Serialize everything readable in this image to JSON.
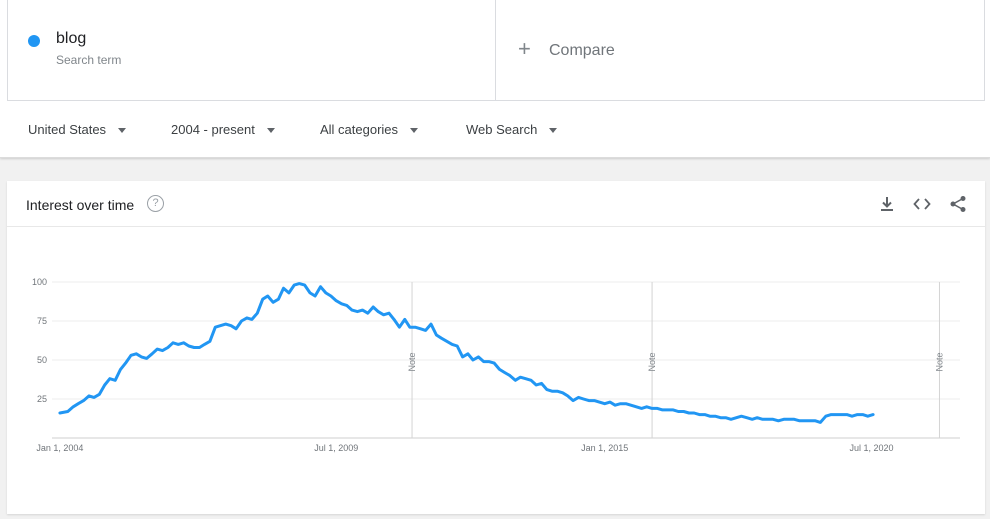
{
  "search_term": {
    "name": "blog",
    "subtitle": "Search term",
    "color": "#2196f3"
  },
  "compare": {
    "label": "Compare"
  },
  "filters": [
    {
      "label": "United States"
    },
    {
      "label": "2004 - present"
    },
    {
      "label": "All categories"
    },
    {
      "label": "Web Search"
    }
  ],
  "card": {
    "title": "Interest over time",
    "help": "?",
    "icons": [
      "download-icon",
      "embed-icon",
      "share-icon"
    ]
  },
  "chart_data": {
    "type": "line",
    "series": [
      {
        "name": "blog",
        "color": "#2196f3",
        "points": [
          [
            2004.0,
            16
          ],
          [
            2004.25,
            17
          ],
          [
            2004.42,
            20
          ],
          [
            2004.58,
            22
          ],
          [
            2004.75,
            24
          ],
          [
            2004.92,
            27
          ],
          [
            2005.08,
            26
          ],
          [
            2005.25,
            28
          ],
          [
            2005.42,
            34
          ],
          [
            2005.58,
            38
          ],
          [
            2005.75,
            37
          ],
          [
            2005.92,
            44
          ],
          [
            2006.08,
            48
          ],
          [
            2006.25,
            53
          ],
          [
            2006.42,
            54
          ],
          [
            2006.58,
            52
          ],
          [
            2006.75,
            51
          ],
          [
            2006.92,
            54
          ],
          [
            2007.08,
            57
          ],
          [
            2007.25,
            56
          ],
          [
            2007.42,
            58
          ],
          [
            2007.58,
            61
          ],
          [
            2007.75,
            60
          ],
          [
            2007.92,
            61
          ],
          [
            2008.08,
            59
          ],
          [
            2008.25,
            58
          ],
          [
            2008.42,
            58
          ],
          [
            2008.58,
            60
          ],
          [
            2008.75,
            62
          ],
          [
            2008.92,
            71
          ],
          [
            2009.08,
            72
          ],
          [
            2009.25,
            73
          ],
          [
            2009.42,
            72
          ],
          [
            2009.58,
            70
          ],
          [
            2009.75,
            75
          ],
          [
            2009.92,
            77
          ],
          [
            2010.08,
            76
          ],
          [
            2010.25,
            80
          ],
          [
            2010.42,
            89
          ],
          [
            2010.58,
            91
          ],
          [
            2010.75,
            87
          ],
          [
            2010.92,
            89
          ],
          [
            2011.08,
            96
          ],
          [
            2011.25,
            93
          ],
          [
            2011.42,
            98
          ],
          [
            2011.58,
            99
          ],
          [
            2011.75,
            98
          ],
          [
            2011.92,
            93
          ],
          [
            2012.08,
            91
          ],
          [
            2012.25,
            97
          ],
          [
            2012.42,
            93
          ],
          [
            2012.58,
            91
          ],
          [
            2012.75,
            88
          ],
          [
            2012.92,
            86
          ],
          [
            2013.08,
            85
          ],
          [
            2013.25,
            82
          ],
          [
            2013.42,
            81
          ],
          [
            2013.58,
            82
          ],
          [
            2013.75,
            80
          ],
          [
            2013.92,
            84
          ],
          [
            2014.08,
            81
          ],
          [
            2014.25,
            79
          ],
          [
            2014.42,
            80
          ],
          [
            2014.58,
            76
          ],
          [
            2014.75,
            71
          ],
          [
            2014.92,
            76
          ],
          [
            2015.08,
            71
          ],
          [
            2015.25,
            71
          ],
          [
            2015.42,
            70
          ],
          [
            2015.58,
            69
          ],
          [
            2015.75,
            73
          ],
          [
            2015.92,
            66
          ],
          [
            2016.08,
            64
          ],
          [
            2016.25,
            62
          ],
          [
            2016.42,
            60
          ],
          [
            2016.58,
            59
          ],
          [
            2016.75,
            52
          ],
          [
            2016.92,
            54
          ],
          [
            2017.08,
            50
          ],
          [
            2017.25,
            52
          ],
          [
            2017.42,
            49
          ],
          [
            2017.58,
            49
          ],
          [
            2017.75,
            48
          ],
          [
            2017.92,
            44
          ],
          [
            2018.08,
            42
          ],
          [
            2018.25,
            40
          ],
          [
            2018.42,
            37
          ],
          [
            2018.58,
            39
          ],
          [
            2018.75,
            38
          ],
          [
            2018.92,
            37
          ],
          [
            2019.08,
            34
          ],
          [
            2019.25,
            35
          ],
          [
            2019.42,
            31
          ],
          [
            2019.58,
            30
          ],
          [
            2019.75,
            30
          ],
          [
            2019.92,
            29
          ],
          [
            2020.08,
            27
          ],
          [
            2020.25,
            24
          ],
          [
            2020.42,
            26
          ],
          [
            2020.58,
            25
          ],
          [
            2020.75,
            24
          ],
          [
            2020.92,
            24
          ],
          [
            2021.08,
            23
          ],
          [
            2021.25,
            22
          ],
          [
            2021.42,
            23
          ],
          [
            2021.58,
            21
          ],
          [
            2021.75,
            22
          ],
          [
            2021.92,
            22
          ],
          [
            2022.08,
            21
          ],
          [
            2022.25,
            20
          ],
          [
            2022.42,
            19
          ],
          [
            2022.58,
            20
          ],
          [
            2022.75,
            19
          ],
          [
            2022.92,
            19
          ],
          [
            2023.08,
            18
          ],
          [
            2023.25,
            18
          ],
          [
            2023.42,
            18
          ],
          [
            2023.58,
            17
          ],
          [
            2023.75,
            17
          ],
          [
            2023.92,
            16
          ],
          [
            2024.08,
            16
          ],
          [
            2024.25,
            15
          ],
          [
            2024.42,
            15
          ],
          [
            2024.58,
            14
          ],
          [
            2024.75,
            14
          ],
          [
            2024.92,
            13
          ],
          [
            2025.08,
            13
          ],
          [
            2025.25,
            12
          ],
          [
            2025.42,
            13
          ],
          [
            2025.58,
            14
          ],
          [
            2025.75,
            13
          ],
          [
            2025.92,
            12
          ],
          [
            2026.08,
            13
          ],
          [
            2026.25,
            12
          ],
          [
            2026.42,
            12
          ],
          [
            2026.58,
            12
          ],
          [
            2026.75,
            11
          ],
          [
            2026.92,
            12
          ],
          [
            2027.08,
            12
          ],
          [
            2027.25,
            12
          ],
          [
            2027.42,
            11
          ],
          [
            2027.58,
            11
          ],
          [
            2027.75,
            11
          ],
          [
            2027.92,
            11
          ],
          [
            2028.08,
            10
          ],
          [
            2028.25,
            14
          ],
          [
            2028.42,
            15
          ],
          [
            2028.58,
            15
          ],
          [
            2028.75,
            15
          ],
          [
            2028.92,
            15
          ],
          [
            2029.08,
            14
          ],
          [
            2029.25,
            15
          ],
          [
            2029.42,
            15
          ],
          [
            2029.58,
            14
          ],
          [
            2029.75,
            15
          ]
        ]
      }
    ],
    "x_ticks": [
      {
        "label": "Jan 1, 2004",
        "x": 2004.0
      },
      {
        "label": "Jul 1, 2009",
        "x": 2012.75
      },
      {
        "label": "Jan 1, 2015",
        "x": 2021.25
      },
      {
        "label": "Jul 1, 2020",
        "x": 2029.7
      }
    ],
    "y_ticks": [
      25,
      50,
      75,
      100
    ],
    "ylim": [
      0,
      100
    ],
    "xlim": [
      2003.75,
      2032.5
    ],
    "notes": [
      {
        "label": "Note",
        "x": 2015.15
      },
      {
        "label": "Note",
        "x": 2022.75
      },
      {
        "label": "Note",
        "x": 2031.85
      }
    ],
    "grid": true,
    "legend": "none"
  }
}
